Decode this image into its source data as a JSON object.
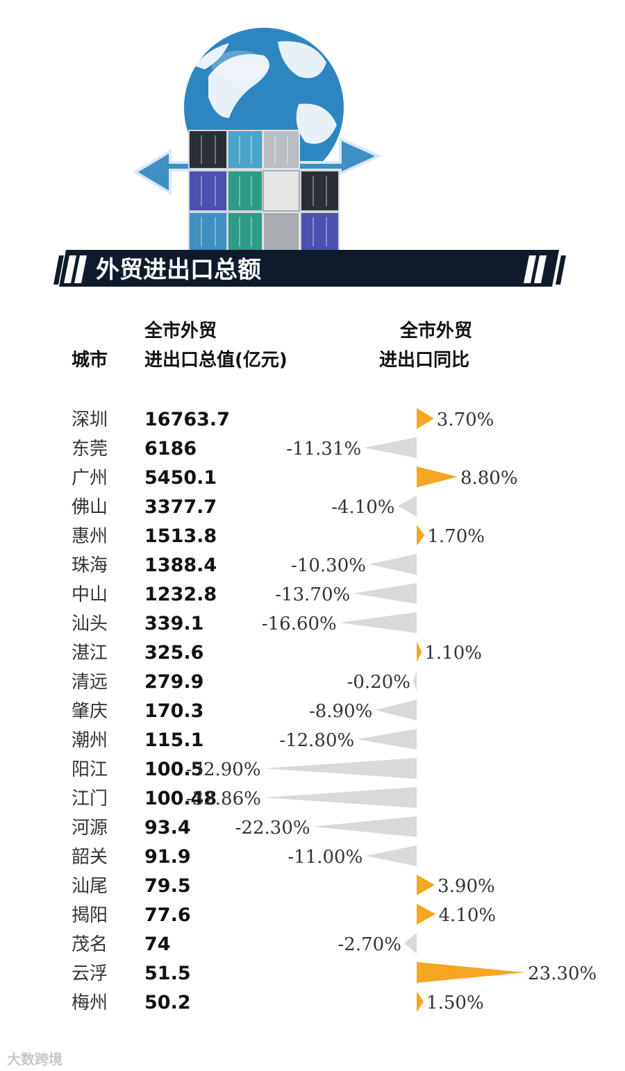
{
  "banner": {
    "title": "外贸进出口总额"
  },
  "headers": {
    "city": "城市",
    "value_line1": "全市外贸",
    "value_line2": "进出口总值(亿元)",
    "yoy_line1": "全市外贸",
    "yoy_line2": "进出口同比"
  },
  "watermark": "大数跨境",
  "colors": {
    "positive": "#f5a623",
    "negative": "#d9d9d9",
    "banner_bg": "#0f1b2b"
  },
  "chart_data": {
    "type": "table",
    "columns": [
      "城市",
      "全市外贸进出口总值(亿元)",
      "全市外贸进出口同比"
    ],
    "rows": [
      {
        "city": "深圳",
        "value": "16763.7",
        "yoy": 3.7,
        "yoy_label": "3.70%"
      },
      {
        "city": "东莞",
        "value": "6186",
        "yoy": -11.31,
        "yoy_label": "-11.31%"
      },
      {
        "city": "广州",
        "value": "5450.1",
        "yoy": 8.8,
        "yoy_label": "8.80%"
      },
      {
        "city": "佛山",
        "value": "3377.7",
        "yoy": -4.1,
        "yoy_label": "-4.10%"
      },
      {
        "city": "惠州",
        "value": "1513.8",
        "yoy": 1.7,
        "yoy_label": "1.70%"
      },
      {
        "city": "珠海",
        "value": "1388.4",
        "yoy": -10.3,
        "yoy_label": "-10.30%"
      },
      {
        "city": "中山",
        "value": "1232.8",
        "yoy": -13.7,
        "yoy_label": "-13.70%"
      },
      {
        "city": "汕头",
        "value": "339.1",
        "yoy": -16.6,
        "yoy_label": "-16.60%"
      },
      {
        "city": "湛江",
        "value": "325.6",
        "yoy": 1.1,
        "yoy_label": "1.10%"
      },
      {
        "city": "清远",
        "value": "279.9",
        "yoy": -0.2,
        "yoy_label": "-0.20%"
      },
      {
        "city": "肇庆",
        "value": "170.3",
        "yoy": -8.9,
        "yoy_label": "-8.90%"
      },
      {
        "city": "潮州",
        "value": "115.1",
        "yoy": -12.8,
        "yoy_label": "-12.80%"
      },
      {
        "city": "阳江",
        "value": "100.5",
        "yoy": -32.9,
        "yoy_label": "-32.90%"
      },
      {
        "city": "江门",
        "value": "100.48",
        "yoy": -32.86,
        "yoy_label": "-32.86%"
      },
      {
        "city": "河源",
        "value": "93.4",
        "yoy": -22.3,
        "yoy_label": "-22.30%"
      },
      {
        "city": "韶关",
        "value": "91.9",
        "yoy": -11.0,
        "yoy_label": "-11.00%"
      },
      {
        "city": "汕尾",
        "value": "79.5",
        "yoy": 3.9,
        "yoy_label": "3.90%"
      },
      {
        "city": "揭阳",
        "value": "77.6",
        "yoy": 4.1,
        "yoy_label": "4.10%"
      },
      {
        "city": "茂名",
        "value": "74",
        "yoy": -2.7,
        "yoy_label": "-2.70%"
      },
      {
        "city": "云浮",
        "value": "51.5",
        "yoy": 23.3,
        "yoy_label": "23.30%"
      },
      {
        "city": "梅州",
        "value": "50.2",
        "yoy": 1.5,
        "yoy_label": "1.50%"
      }
    ]
  }
}
